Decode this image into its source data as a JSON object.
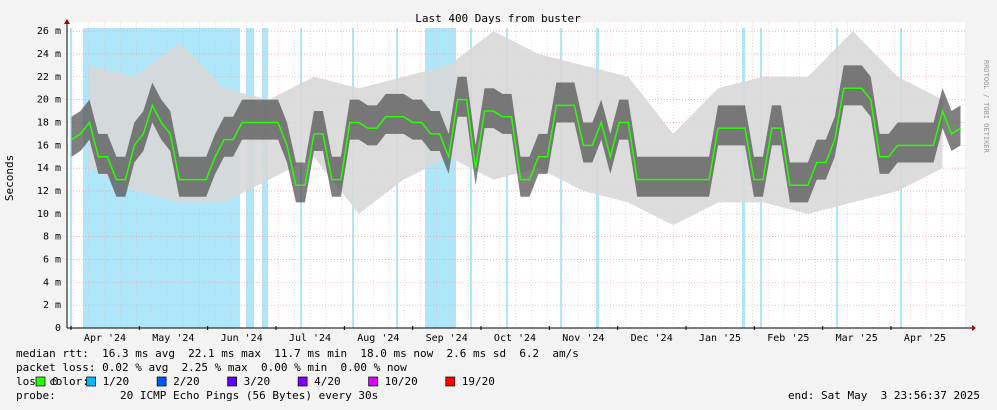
{
  "chart_data": {
    "type": "smokeping",
    "title": "Last 400 Days from buster",
    "y_label": "Seconds",
    "side_text": "RRDTOOL / TOBI OETIKER",
    "categories": [
      "Apr '24",
      "May '24",
      "Jun '24",
      "Jul '24",
      "Aug '24",
      "Sep '24",
      "Oct '24",
      "Nov '24",
      "Dec '24",
      "Jan '25",
      "Feb '25",
      "Mar '25",
      "Apr '25"
    ],
    "ylim": [
      0,
      0.0268
    ],
    "yticks": [
      0,
      {
        "value": 0.002,
        "label": "2 m"
      },
      {
        "value": 0.004,
        "label": "4 m"
      },
      {
        "value": 0.006,
        "label": "6 m"
      },
      {
        "value": 0.008,
        "label": "8 m"
      },
      {
        "value": 0.01,
        "label": "10 m"
      },
      {
        "value": 0.012,
        "label": "12 m"
      },
      {
        "value": 0.014,
        "label": "14 m"
      },
      {
        "value": 0.016,
        "label": "16 m"
      },
      {
        "value": 0.018,
        "label": "18 m"
      },
      {
        "value": 0.02,
        "label": "20 m"
      },
      {
        "value": 0.022,
        "label": "22 m"
      },
      {
        "value": 0.024,
        "label": "24 m"
      },
      {
        "value": 0.026,
        "label": "26 m"
      }
    ],
    "grid": true,
    "median": {
      "color": "#26ff00",
      "values": [
        0.0165,
        0.017,
        0.018,
        0.015,
        0.015,
        0.013,
        0.013,
        0.016,
        0.017,
        0.0195,
        0.018,
        0.017,
        0.013,
        0.013,
        0.013,
        0.013,
        0.015,
        0.0165,
        0.0165,
        0.018,
        0.018,
        0.018,
        0.018,
        0.018,
        0.016,
        0.0125,
        0.0125,
        0.017,
        0.017,
        0.013,
        0.013,
        0.018,
        0.018,
        0.0175,
        0.0175,
        0.0185,
        0.0185,
        0.0185,
        0.018,
        0.018,
        0.017,
        0.017,
        0.015,
        0.02,
        0.02,
        0.014,
        0.019,
        0.019,
        0.0185,
        0.0185,
        0.013,
        0.013,
        0.015,
        0.015,
        0.0195,
        0.0195,
        0.0195,
        0.016,
        0.016,
        0.018,
        0.015,
        0.018,
        0.018,
        0.013,
        0.013,
        0.013,
        0.013,
        0.013,
        0.013,
        0.013,
        0.013,
        0.013,
        0.0175,
        0.0175,
        0.0175,
        0.0175,
        0.013,
        0.013,
        0.0175,
        0.0175,
        0.0125,
        0.0125,
        0.0125,
        0.0145,
        0.0145,
        0.0165,
        0.021,
        0.021,
        0.021,
        0.02,
        0.015,
        0.015,
        0.016,
        0.016,
        0.016,
        0.016,
        0.016,
        0.019,
        0.017,
        0.0175
      ]
    },
    "smoke": {
      "low": [
        0.014,
        0.012,
        0.011,
        0.011,
        0.013,
        0.015,
        0.01,
        0.013,
        0.015,
        0.013,
        0.014,
        0.012,
        0.011,
        0.009,
        0.011,
        0.011,
        0.01,
        0.011,
        0.012,
        0.014
      ],
      "high": [
        0.023,
        0.022,
        0.025,
        0.021,
        0.02,
        0.022,
        0.021,
        0.022,
        0.023,
        0.026,
        0.024,
        0.023,
        0.022,
        0.017,
        0.021,
        0.022,
        0.022,
        0.026,
        0.022,
        0.02
      ]
    },
    "stats": [
      "median rtt:  16.3 ms avg  22.1 ms max  11.7 ms min  18.0 ms now  2.6 ms sd  6.2  am/s",
      "packet loss: 0.02 % avg  2.25 % max  0.00 % min  0.00 % now"
    ],
    "loss_label": "loss color:",
    "loss_colors": [
      {
        "label": "0",
        "color": "#26ff00"
      },
      {
        "label": "1/20",
        "color": "#00b8ff"
      },
      {
        "label": "2/20",
        "color": "#0059ff"
      },
      {
        "label": "3/20",
        "color": "#5e00ff"
      },
      {
        "label": "4/20",
        "color": "#7e00ff"
      },
      {
        "label": "10/20",
        "color": "#dd00ff"
      },
      {
        "label": "19/20",
        "color": "#ff0000"
      }
    ],
    "probe_label": "probe:",
    "probe": "20 ICMP Echo Pings (56 Bytes) every 30s",
    "end": "end: Sat May  3 23:56:37 2025"
  }
}
